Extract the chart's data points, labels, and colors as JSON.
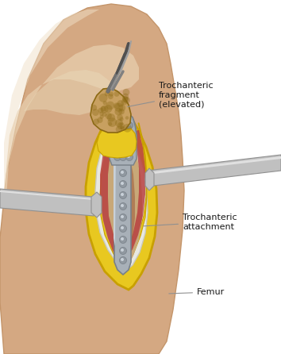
{
  "background_color": "#ffffff",
  "figure_size": [
    3.54,
    4.46
  ],
  "dpi": 100,
  "skin_color": "#D4A882",
  "skin_dark": "#C4956A",
  "skin_light": "#E8D0B0",
  "skin_highlight": "#F0E0C8",
  "yellow_fascia": "#E8C820",
  "yellow_fascia_dark": "#C8A000",
  "yellow_fascia_inner": "#D4B000",
  "white_layer": "#E8E8E0",
  "white_edge": "#C8C8C0",
  "plate_gray": "#A8B0B8",
  "plate_dark": "#788088",
  "plate_light": "#C8D0D8",
  "plate_mid": "#9098A0",
  "red_muscle": "#B84040",
  "brown_muscle": "#A06040",
  "bone_tan": "#C8A060",
  "bone_brown": "#8B6914",
  "bone_light": "#D4B878",
  "retractor_gray": "#C0C0C0",
  "retractor_light": "#E0E0E0",
  "retractor_dark": "#909090",
  "tool_dark": "#505050",
  "text_color": "#1a1a1a",
  "leader_color": "#909090",
  "labels": {
    "trochanteric_fragment": "Trochanteric\nfragment\n(elevated)",
    "trochanteric_attachment": "Trochanteric\nattachment",
    "femur": "Femur"
  }
}
